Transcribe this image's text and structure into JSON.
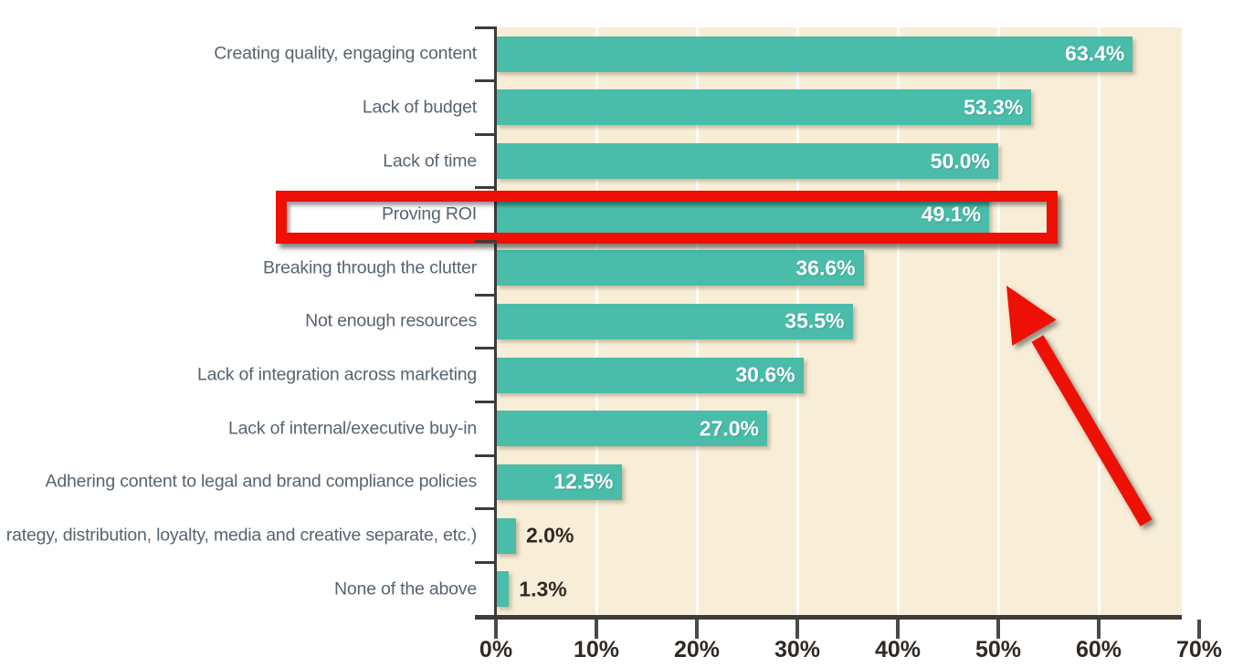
{
  "chart_data": {
    "type": "bar",
    "orientation": "horizontal",
    "title": "",
    "xlabel": "",
    "ylabel": "",
    "categories": [
      "Creating quality, engaging content",
      "Lack of budget",
      "Lack of time",
      "Proving ROI",
      "Breaking through the clutter",
      "Not enough resources",
      "Lack of integration across marketing",
      "Lack of internal/executive buy-in",
      "Adhering content to legal and brand compliance policies",
      "rategy, distribution, loyalty, media and creative separate, etc.)",
      "None of the above"
    ],
    "values": [
      63.4,
      53.3,
      50.0,
      49.1,
      36.6,
      35.5,
      30.6,
      27.0,
      12.5,
      2.0,
      1.3
    ],
    "value_labels": [
      "63.4%",
      "53.3%",
      "50.0%",
      "49.1%",
      "36.6%",
      "35.5%",
      "30.6%",
      "27.0%",
      "12.5%",
      "2.0%",
      "1.3%"
    ],
    "x_ticks": [
      "0%",
      "10%",
      "20%",
      "30%",
      "40%",
      "50%",
      "60%",
      "70%"
    ],
    "xlim": [
      0,
      70
    ],
    "grid": "vertical white gridlines every 10%",
    "legend": "none",
    "highlight": {
      "category": "Proving ROI",
      "value_label": "49.1%",
      "annotation": "red rectangle outline around row with red arrow pointing at it from lower right"
    }
  },
  "colors": {
    "bar": "#49BCAA",
    "plot_bg": "#F8EED8",
    "red": "#EE1005",
    "category_text": "#566472",
    "axis_text": "#2F2925",
    "axis_line": "#3C3C3C",
    "value_on_bar": "#FFFFFF",
    "gridline": "#FFFFFF"
  }
}
